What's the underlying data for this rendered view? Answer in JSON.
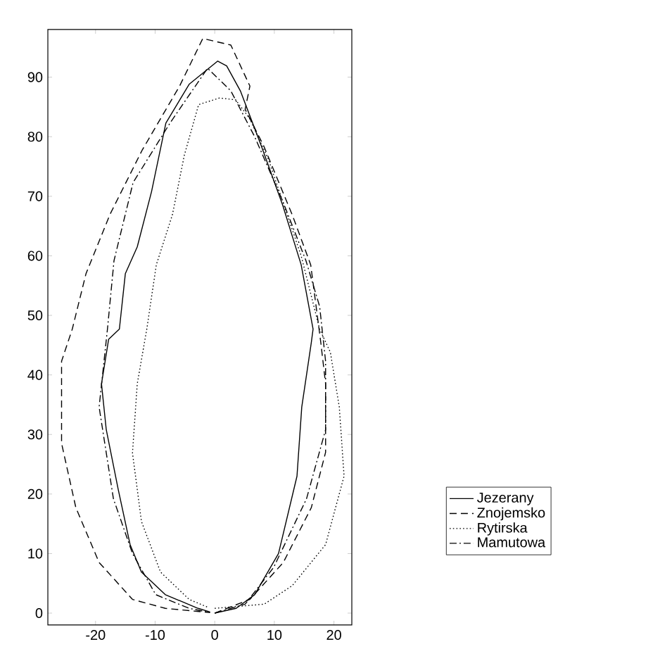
{
  "chart_data": {
    "type": "line",
    "xlim": [
      -28,
      23
    ],
    "ylim": [
      -2,
      98
    ],
    "xticks": [
      -20,
      -10,
      0,
      10,
      20
    ],
    "yticks": [
      0,
      10,
      20,
      30,
      40,
      50,
      60,
      70,
      80,
      90
    ],
    "grid": false,
    "legend": "bottom right",
    "marker": "none",
    "series": [
      {
        "name": "Jezerany",
        "color": "#000000",
        "line_style": "solid",
        "x": [
          0,
          3.6,
          6.7,
          10.7,
          13.8,
          14.6,
          16.2,
          16.5,
          14.5,
          11.4,
          7.8,
          4.3,
          2,
          0.5,
          -4.3,
          -8.2,
          -10.6,
          -13,
          -15,
          -16,
          -17.8,
          -19,
          -18.2,
          -16.2,
          -14.2,
          -12.3,
          -8.3,
          -2.8,
          -0.8
        ],
        "values": [
          0,
          0.8,
          3.1,
          10,
          23,
          34.6,
          45.4,
          47.7,
          58.5,
          68.5,
          78.5,
          87.7,
          91.9,
          92.7,
          88.8,
          82.3,
          70.8,
          61.5,
          57,
          47.7,
          46,
          38.5,
          30.8,
          20.8,
          11.5,
          6.9,
          3.1,
          0.8,
          0.2
        ]
      },
      {
        "name": "Znojemsko",
        "color": "#000000",
        "line_style": "dashed",
        "x": [
          0,
          5.9,
          11.5,
          16.2,
          18.6,
          18.6,
          17.8,
          16.1,
          13,
          8.2,
          5.1,
          5.9,
          2.7,
          -2,
          -5.9,
          -12.2,
          -17.6,
          -21.6,
          -23.9,
          -25.7,
          -25.7,
          -23.3,
          -19.4,
          -13.8,
          -8.3,
          -3,
          -0.8
        ],
        "values": [
          0,
          2.3,
          8.5,
          17.7,
          27,
          38.5,
          45.4,
          58.5,
          66.9,
          78.5,
          84.6,
          88.5,
          95.4,
          96.5,
          88.5,
          77.7,
          66.9,
          57,
          47.7,
          42.3,
          28.5,
          17.7,
          8.5,
          2.3,
          0.8,
          0.3,
          0.1
        ]
      },
      {
        "name": "Rytirska",
        "color": "#000000",
        "line_style": "dotted",
        "x": [
          0,
          8.3,
          13,
          18.6,
          21.7,
          20.9,
          19.4,
          17.6,
          14.5,
          9,
          5.9,
          3.5,
          0.8,
          -2.7,
          -5.1,
          -7.1,
          -9.8,
          -11.4,
          -13,
          -13.8,
          -12.3,
          -9.1,
          -4.3,
          -1.2
        ],
        "values": [
          0.8,
          1.5,
          4.6,
          11.5,
          23,
          34.6,
          43.8,
          47.7,
          60,
          76.2,
          83,
          86.2,
          86.5,
          85.4,
          76.9,
          66.9,
          58.5,
          47.7,
          38.5,
          26.9,
          15.4,
          6.9,
          2.3,
          1
        ]
      },
      {
        "name": "Mamutowa",
        "color": "#000000",
        "line_style": "dashdot",
        "x": [
          0,
          5.1,
          9.9,
          15.4,
          18.6,
          18.6,
          17.6,
          15.3,
          11.4,
          6.7,
          2.7,
          -1.2,
          -7.5,
          -13.7,
          -16.9,
          -18,
          -19.4,
          -17,
          -13.8,
          -9.9,
          -4.3,
          -0.8
        ],
        "values": [
          0,
          1.5,
          7.7,
          19.2,
          30.8,
          42.3,
          51.5,
          59.2,
          69.2,
          80,
          87.7,
          91.5,
          82.3,
          72.3,
          59.2,
          47.7,
          34.6,
          19.2,
          10,
          3.1,
          0.8,
          0.1
        ]
      }
    ]
  }
}
